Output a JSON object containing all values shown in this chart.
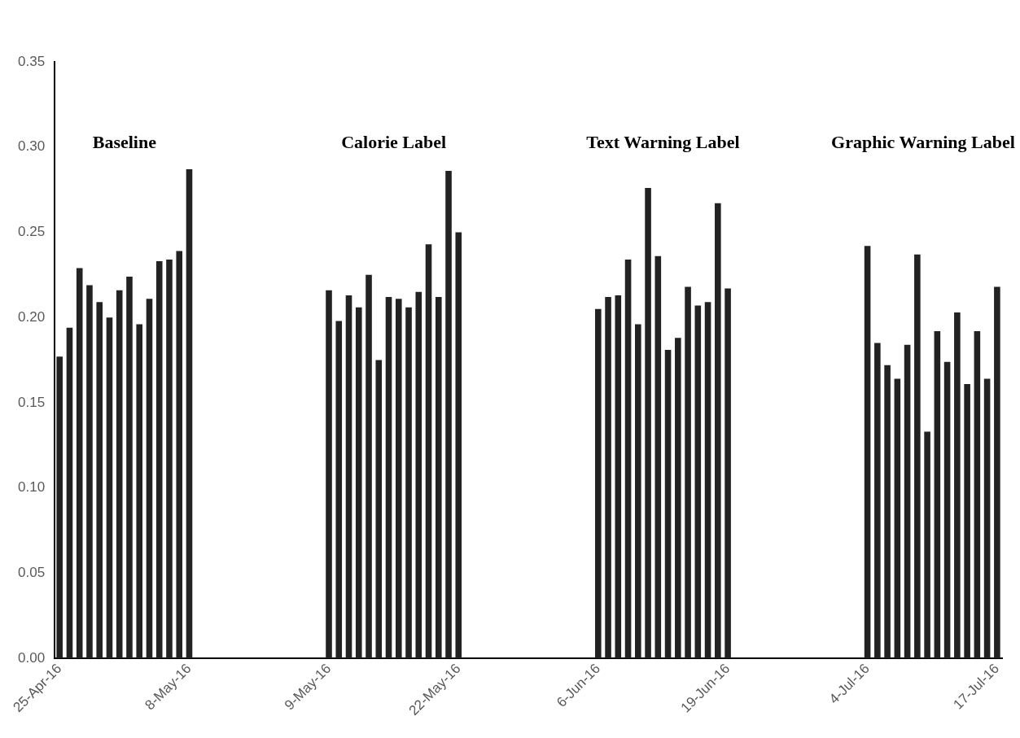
{
  "chart_data": {
    "type": "bar",
    "categories": [
      "25-Apr-16",
      null,
      null,
      null,
      null,
      null,
      null,
      null,
      null,
      null,
      null,
      null,
      null,
      "8-May-16",
      null,
      null,
      null,
      null,
      null,
      null,
      null,
      null,
      null,
      null,
      null,
      null,
      null,
      "9-May-16",
      null,
      null,
      null,
      null,
      null,
      null,
      null,
      null,
      null,
      null,
      null,
      null,
      "22-May-16",
      null,
      null,
      null,
      null,
      null,
      null,
      null,
      null,
      null,
      null,
      null,
      null,
      null,
      "6-Jun-16",
      null,
      null,
      null,
      null,
      null,
      null,
      null,
      null,
      null,
      null,
      null,
      null,
      "19-Jun-16",
      null,
      null,
      null,
      null,
      null,
      null,
      null,
      null,
      null,
      null,
      null,
      null,
      null,
      "4-Jul-16",
      null,
      null,
      null,
      null,
      null,
      null,
      null,
      null,
      null,
      null,
      null,
      null,
      "17-Jul-16"
    ],
    "values": [
      0.177,
      0.194,
      0.229,
      0.219,
      0.209,
      0.2,
      0.216,
      0.224,
      0.196,
      0.211,
      0.233,
      0.234,
      0.239,
      0.287,
      null,
      null,
      null,
      null,
      null,
      null,
      null,
      null,
      null,
      null,
      null,
      null,
      null,
      0.216,
      0.198,
      0.213,
      0.206,
      0.225,
      0.175,
      0.212,
      0.211,
      0.206,
      0.215,
      0.243,
      0.212,
      0.286,
      0.25,
      null,
      null,
      null,
      null,
      null,
      null,
      null,
      null,
      null,
      null,
      null,
      null,
      null,
      0.205,
      0.212,
      0.213,
      0.234,
      0.196,
      0.276,
      0.236,
      0.181,
      0.188,
      0.218,
      0.207,
      0.209,
      0.267,
      0.217,
      null,
      null,
      null,
      null,
      null,
      null,
      null,
      null,
      null,
      null,
      null,
      null,
      null,
      0.242,
      0.185,
      0.172,
      0.164,
      0.184,
      0.237,
      0.133,
      0.192,
      0.174,
      0.203,
      0.161,
      0.192,
      0.164,
      0.218
    ],
    "color": "#222222",
    "ylim": [
      0,
      0.35
    ],
    "yticks": [
      {
        "value": 0,
        "label": "0.00"
      },
      {
        "value": 0.05,
        "label": "0.05"
      },
      {
        "value": 0.1,
        "label": "0.10"
      },
      {
        "value": 0.15,
        "label": "0.15"
      },
      {
        "value": 0.2,
        "label": "0.20"
      },
      {
        "value": 0.25,
        "label": "0.25"
      },
      {
        "value": 0.3,
        "label": "0.30"
      },
      {
        "value": 0.35,
        "label": "0.35"
      }
    ],
    "annotations": [
      "Baseline",
      "Calorie Label",
      "Text Warning Label",
      "Graphic Warning Label"
    ],
    "grid": false,
    "legend": false
  }
}
